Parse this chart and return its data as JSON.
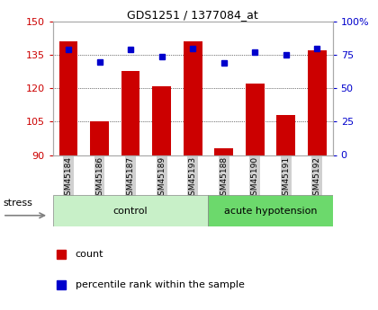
{
  "title": "GDS1251 / 1377084_at",
  "samples": [
    "GSM45184",
    "GSM45186",
    "GSM45187",
    "GSM45189",
    "GSM45193",
    "GSM45188",
    "GSM45190",
    "GSM45191",
    "GSM45192"
  ],
  "counts": [
    141,
    105,
    128,
    121,
    141,
    93,
    122,
    108,
    137
  ],
  "percentiles": [
    79,
    70,
    79,
    74,
    80,
    69,
    77,
    75,
    80
  ],
  "groups": [
    "control",
    "control",
    "control",
    "control",
    "control",
    "acute hypotension",
    "acute hypotension",
    "acute hypotension",
    "acute hypotension"
  ],
  "group_names": [
    "control",
    "acute hypotension"
  ],
  "group_colors": [
    "#c8f0c8",
    "#6cd96c"
  ],
  "bar_color": "#cc0000",
  "dot_color": "#0000cc",
  "ylim_left": [
    90,
    150
  ],
  "ylim_right": [
    0,
    100
  ],
  "yticks_left": [
    90,
    105,
    120,
    135,
    150
  ],
  "yticks_right": [
    0,
    25,
    50,
    75,
    100
  ],
  "ylabel_left_color": "#cc0000",
  "ylabel_right_color": "#0000cc",
  "stress_label": "stress",
  "legend_count": "count",
  "legend_percentile": "percentile rank within the sample"
}
